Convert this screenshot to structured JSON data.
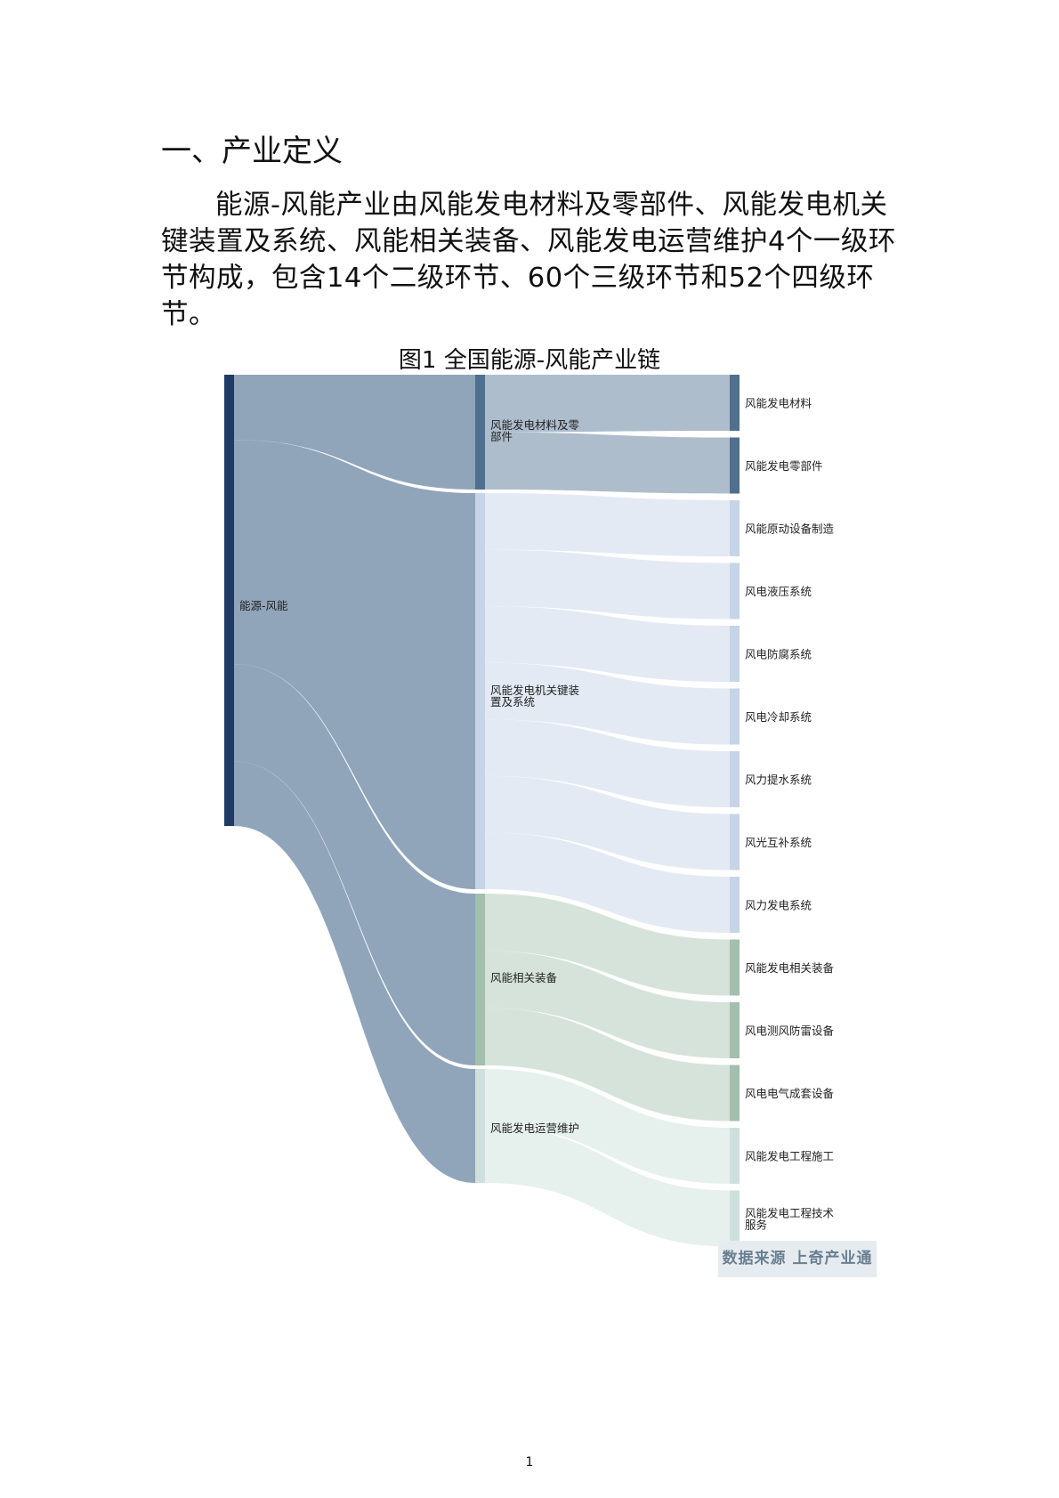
{
  "section": {
    "heading": "一、产业定义"
  },
  "paragraph": "能源-风能产业由风能发电材料及零部件、风能发电机关键装置及系统、风能相关装备、风能发电运营维护4个一级环节构成，包含14个二级环节、60个三级环节和52个四级环节。",
  "figure": {
    "title": "图1 全国能源-风能产业链",
    "source": "数据来源 上奇产业通",
    "root": {
      "label": "能源-风能"
    },
    "level1": [
      {
        "label": "风能发电材料及零部件",
        "lines": [
          "风能发电材料及零",
          "部件"
        ],
        "color": "#4f6f8f",
        "link_color": "#a9b9c9"
      },
      {
        "label": "风能发电机关键装置及系统",
        "lines": [
          "风能发电机关键装",
          "置及系统"
        ],
        "color": "#c5d4e6",
        "link_color": "#e1e9f3"
      },
      {
        "label": "风能相关装备",
        "lines": [
          "风能相关装备"
        ],
        "color": "#a3bfad",
        "link_color": "#d4e1d8"
      },
      {
        "label": "风能发电运营维护",
        "lines": [
          "风能发电运营维护"
        ],
        "color": "#cfe0dc",
        "link_color": "#e5efec"
      }
    ],
    "level2": [
      {
        "parent": 0,
        "lines": [
          "风能发电材料"
        ]
      },
      {
        "parent": 0,
        "lines": [
          "风能发电零部件"
        ]
      },
      {
        "parent": 1,
        "lines": [
          "风能原动设备制造"
        ]
      },
      {
        "parent": 1,
        "lines": [
          "风电液压系统"
        ]
      },
      {
        "parent": 1,
        "lines": [
          "风电防腐系统"
        ]
      },
      {
        "parent": 1,
        "lines": [
          "风电冷却系统"
        ]
      },
      {
        "parent": 1,
        "lines": [
          "风力提水系统"
        ]
      },
      {
        "parent": 1,
        "lines": [
          "风光互补系统"
        ]
      },
      {
        "parent": 1,
        "lines": [
          "风力发电系统"
        ]
      },
      {
        "parent": 2,
        "lines": [
          "风能发电相关装备"
        ]
      },
      {
        "parent": 2,
        "lines": [
          "风电测风防雷设备"
        ]
      },
      {
        "parent": 2,
        "lines": [
          "风电电气成套设备"
        ]
      },
      {
        "parent": 3,
        "lines": [
          "风能发电工程施工"
        ]
      },
      {
        "parent": 3,
        "lines": [
          "风能发电工程技术",
          "服务"
        ]
      }
    ],
    "colors": {
      "root": "#1f3b63",
      "root_link": "#8aa0b6"
    }
  },
  "page": {
    "number": "1"
  }
}
